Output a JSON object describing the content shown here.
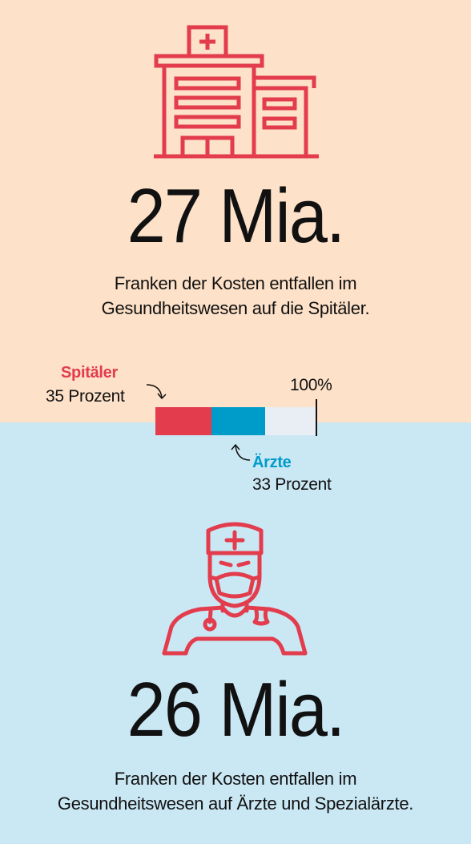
{
  "colors": {
    "top_background": "#fde1c8",
    "bottom_background": "#cae7f4",
    "hospital_red": "#e23c4d",
    "doctor_blue": "#009cc9",
    "remainder": "#e8eef3"
  },
  "hospitals": {
    "icon": "hospital-icon",
    "amount": "27 Mia.",
    "caption_line1": "Franken der Kosten entfallen im",
    "caption_line2": "Gesundheitswesen auf die Spitäler."
  },
  "share_bar": {
    "total_label": "100%",
    "segments": [
      {
        "name": "Spitäler",
        "label": "35 Prozent",
        "percent": 35,
        "color": "#e23c4d"
      },
      {
        "name": "Ärzte",
        "label": "33 Prozent",
        "percent": 33,
        "color": "#009cc9"
      }
    ]
  },
  "doctors": {
    "icon": "doctor-icon",
    "amount": "26 Mia.",
    "caption_line1": "Franken der Kosten entfallen im",
    "caption_line2": "Gesundheitswesen auf Ärzte und Spezialärzte."
  }
}
